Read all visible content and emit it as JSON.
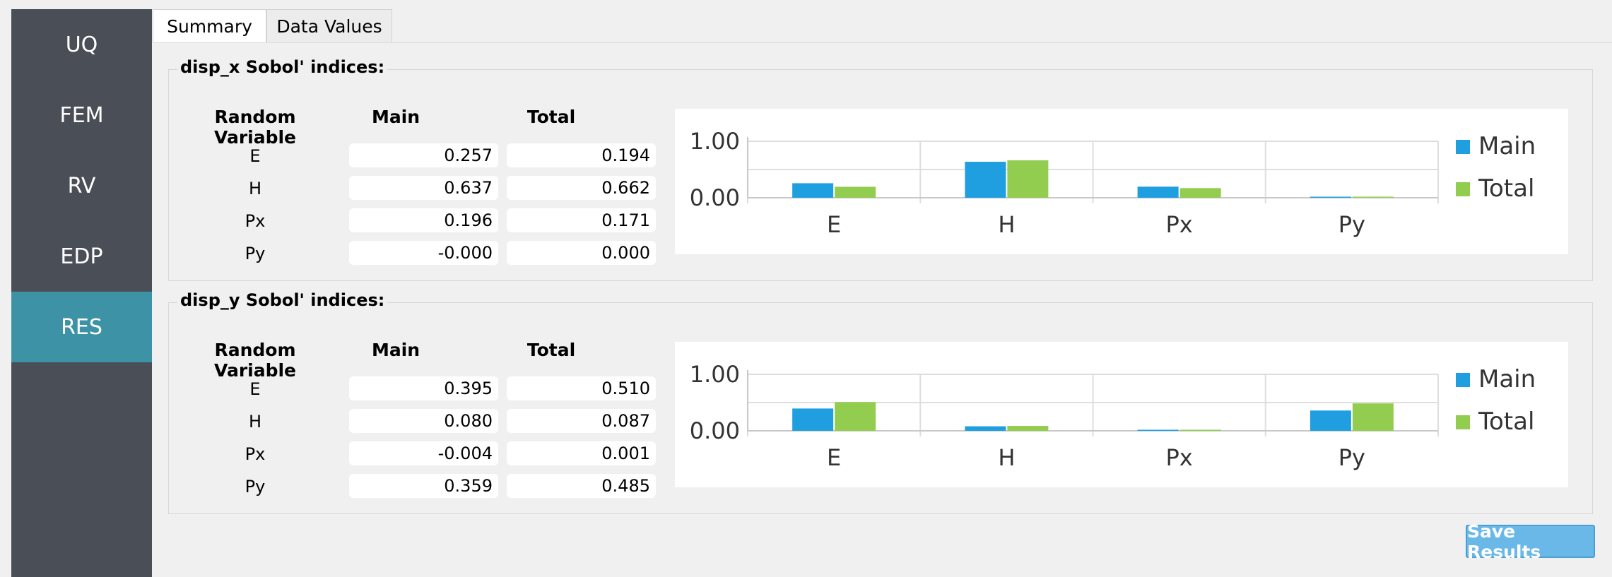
{
  "sidebar": {
    "items": [
      {
        "label": "UQ",
        "active": false
      },
      {
        "label": "FEM",
        "active": false
      },
      {
        "label": "RV",
        "active": false
      },
      {
        "label": "EDP",
        "active": false
      },
      {
        "label": "RES",
        "active": true
      }
    ]
  },
  "tabs": [
    {
      "label": "Summary",
      "active": true
    },
    {
      "label": "Data Values",
      "active": false
    }
  ],
  "columns": {
    "rv": "Random Variable",
    "main": "Main",
    "total": "Total"
  },
  "panels": [
    {
      "title": "disp_x Sobol' indices:",
      "rows": [
        {
          "var": "E",
          "main": "0.257",
          "total": "0.194"
        },
        {
          "var": "H",
          "main": "0.637",
          "total": "0.662"
        },
        {
          "var": "Px",
          "main": "0.196",
          "total": "0.171"
        },
        {
          "var": "Py",
          "main": "-0.000",
          "total": "0.000"
        }
      ]
    },
    {
      "title": "disp_y Sobol' indices:",
      "rows": [
        {
          "var": "E",
          "main": "0.395",
          "total": "0.510"
        },
        {
          "var": "H",
          "main": "0.080",
          "total": "0.087"
        },
        {
          "var": "Px",
          "main": "-0.004",
          "total": "0.001"
        },
        {
          "var": "Py",
          "main": "0.359",
          "total": "0.485"
        }
      ]
    }
  ],
  "chart_data": [
    {
      "type": "bar",
      "categories": [
        "E",
        "H",
        "Px",
        "Py"
      ],
      "series": [
        {
          "name": "Main",
          "values": [
            0.257,
            0.637,
            0.196,
            -0.0
          ],
          "color": "#1f9fe0"
        },
        {
          "name": "Total",
          "values": [
            0.194,
            0.662,
            0.171,
            0.0
          ],
          "color": "#92cd4f"
        }
      ],
      "y_tick_labels": [
        "1.00",
        "0.00"
      ],
      "ylim": [
        0,
        1
      ],
      "grid": true,
      "legend": "right"
    },
    {
      "type": "bar",
      "categories": [
        "E",
        "H",
        "Px",
        "Py"
      ],
      "series": [
        {
          "name": "Main",
          "values": [
            0.395,
            0.08,
            -0.004,
            0.359
          ],
          "color": "#1f9fe0"
        },
        {
          "name": "Total",
          "values": [
            0.51,
            0.087,
            0.001,
            0.485
          ],
          "color": "#92cd4f"
        }
      ],
      "y_tick_labels": [
        "1.00",
        "0.00"
      ],
      "ylim": [
        0,
        1
      ],
      "grid": true,
      "legend": "right"
    }
  ],
  "save_button": {
    "label": "Save Results"
  }
}
